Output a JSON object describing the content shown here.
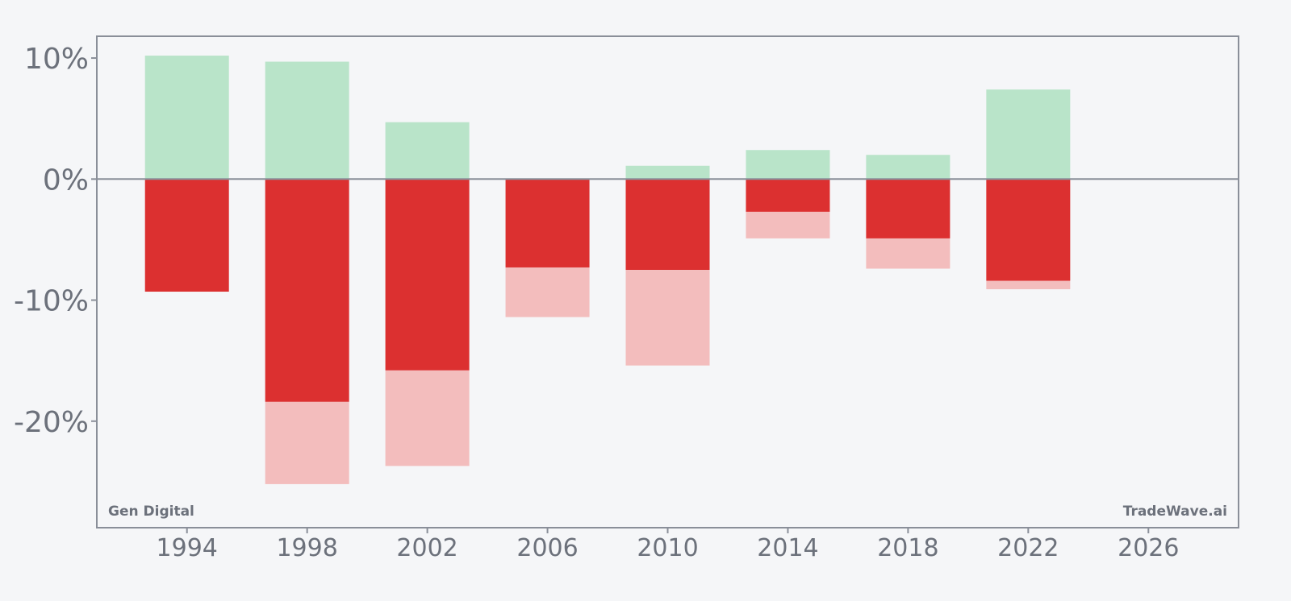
{
  "chart_data": {
    "type": "bar",
    "subtype": "diverging-range",
    "x_axis": {
      "range": [
        1991,
        2029
      ],
      "ticks": [
        1994,
        1998,
        2002,
        2006,
        2010,
        2014,
        2018,
        2022,
        2026
      ],
      "tick_labels": [
        "1994",
        "1998",
        "2002",
        "2006",
        "2010",
        "2014",
        "2018",
        "2022",
        "2026"
      ]
    },
    "y_axis": {
      "range": [
        -28.8,
        11.8
      ],
      "ticks": [
        10,
        0,
        -10,
        -20
      ],
      "tick_labels": [
        "10%",
        "0%",
        "-10%",
        "-20%"
      ],
      "unit": "%"
    },
    "grid": false,
    "legend": "none",
    "zero_line": true,
    "bars": [
      {
        "x": 1994,
        "upper": 10.2,
        "lower": -9.3,
        "faded_lower": -9.3
      },
      {
        "x": 1998,
        "upper": 9.7,
        "lower": -18.4,
        "faded_lower": -25.2
      },
      {
        "x": 2002,
        "upper": 4.7,
        "lower": -15.8,
        "faded_lower": -23.7
      },
      {
        "x": 2006,
        "upper": 0.0,
        "lower": -7.3,
        "faded_lower": -11.4
      },
      {
        "x": 2010,
        "upper": 1.1,
        "lower": -7.5,
        "faded_lower": -15.4
      },
      {
        "x": 2014,
        "upper": 2.4,
        "lower": -2.7,
        "faded_lower": -4.9
      },
      {
        "x": 2018,
        "upper": 2.0,
        "lower": -4.9,
        "faded_lower": -7.4
      },
      {
        "x": 2022,
        "upper": 7.4,
        "lower": -8.4,
        "faded_lower": -9.1
      }
    ],
    "colors": {
      "upper": "#b9e4c9",
      "lower": "#dc3030",
      "faded_lower": "#f3bdbd",
      "axis": "#8a8f99",
      "background": "#f5f6f8"
    }
  },
  "watermark": {
    "left": "Gen Digital",
    "right": "TradeWave.ai"
  }
}
